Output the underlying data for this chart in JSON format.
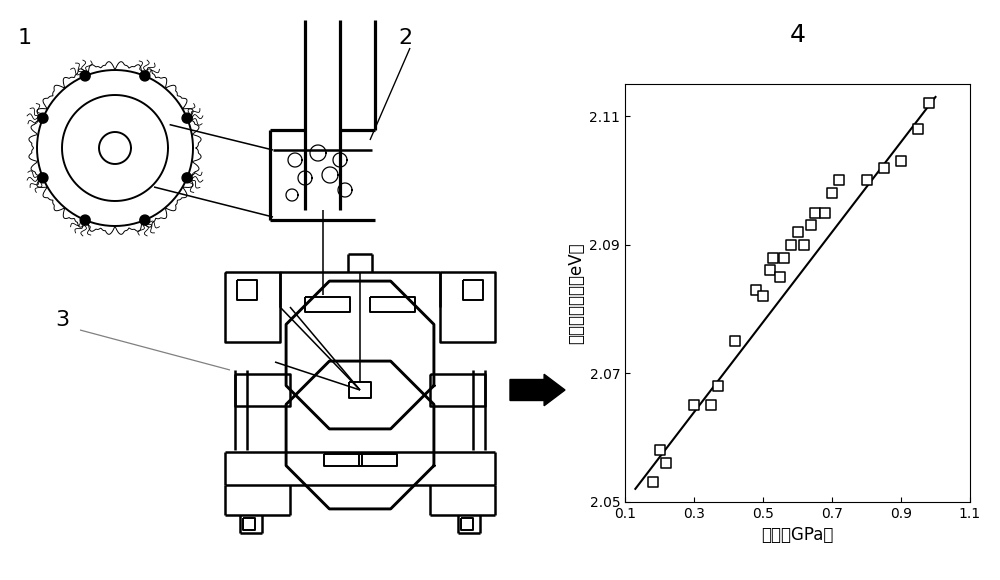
{
  "scatter_x": [
    0.18,
    0.2,
    0.22,
    0.3,
    0.35,
    0.37,
    0.42,
    0.48,
    0.5,
    0.52,
    0.53,
    0.55,
    0.56,
    0.58,
    0.6,
    0.62,
    0.64,
    0.65,
    0.68,
    0.7,
    0.72,
    0.8,
    0.85,
    0.9,
    0.95,
    0.98
  ],
  "scatter_y": [
    2.053,
    2.058,
    2.056,
    2.065,
    2.065,
    2.068,
    2.075,
    2.083,
    2.082,
    2.086,
    2.088,
    2.085,
    2.088,
    2.09,
    2.092,
    2.09,
    2.093,
    2.095,
    2.095,
    2.098,
    2.1,
    2.1,
    2.102,
    2.103,
    2.108,
    2.112
  ],
  "fit_x": [
    0.13,
    1.0
  ],
  "fit_y": [
    2.052,
    2.113
  ],
  "xlabel": "压力（GPa）",
  "ylabel": "光致发光强度（eV）",
  "xlim": [
    0.1,
    1.1
  ],
  "ylim": [
    2.05,
    2.115
  ],
  "xticks": [
    0.1,
    0.3,
    0.5,
    0.7,
    0.9,
    1.1
  ],
  "yticks": [
    2.05,
    2.07,
    2.09,
    2.11
  ],
  "label_4": "4",
  "label_1": "1",
  "label_2": "2",
  "label_3": "3",
  "marker_color": "black",
  "marker_facecolor": "white",
  "line_color": "black",
  "bg_color": "#ffffff",
  "label_fontsize": 12,
  "tick_fontsize": 10,
  "number_fontsize": 16
}
